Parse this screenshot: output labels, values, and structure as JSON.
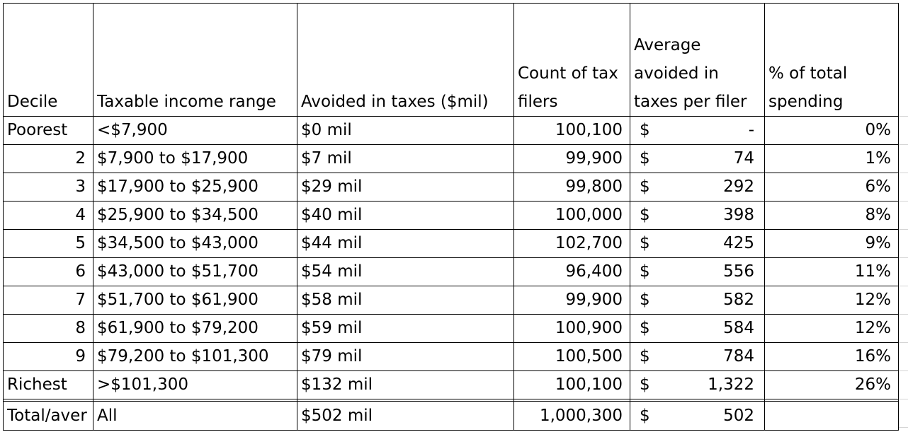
{
  "chart_data": {
    "type": "table",
    "columns": [
      "Decile",
      "Taxable income range",
      "Avoided in taxes ($mil)",
      "Count of tax filers",
      "Average avoided in taxes per filer",
      "% of total spending"
    ],
    "header_lines": [
      [
        "Decile"
      ],
      [
        "Taxable income range"
      ],
      [
        "Avoided in taxes ($mil)"
      ],
      [
        "Count of tax",
        "filers"
      ],
      [
        "Average",
        "avoided in",
        "taxes per filer"
      ],
      [
        "% of total",
        "spending"
      ]
    ],
    "rows": [
      {
        "decile": "Poorest",
        "range": "<$7,900",
        "avoided": "$0 mil",
        "count": "100,100",
        "cur": "$",
        "avg": "-",
        "pct": "0%"
      },
      {
        "decile": "2",
        "range": "$7,900 to $17,900",
        "avoided": "$7 mil",
        "count": "99,900",
        "cur": "$",
        "avg": "74",
        "pct": "1%"
      },
      {
        "decile": "3",
        "range": "$17,900 to $25,900",
        "avoided": "$29 mil",
        "count": "99,800",
        "cur": "$",
        "avg": "292",
        "pct": "6%"
      },
      {
        "decile": "4",
        "range": "$25,900 to $34,500",
        "avoided": "$40 mil",
        "count": "100,000",
        "cur": "$",
        "avg": "398",
        "pct": "8%"
      },
      {
        "decile": "5",
        "range": "$34,500 to $43,000",
        "avoided": "$44 mil",
        "count": "102,700",
        "cur": "$",
        "avg": "425",
        "pct": "9%"
      },
      {
        "decile": "6",
        "range": "$43,000 to $51,700",
        "avoided": "$54 mil",
        "count": "96,400",
        "cur": "$",
        "avg": "556",
        "pct": "11%"
      },
      {
        "decile": "7",
        "range": "$51,700 to $61,900",
        "avoided": "$58 mil",
        "count": "99,900",
        "cur": "$",
        "avg": "582",
        "pct": "12%"
      },
      {
        "decile": "8",
        "range": "$61,900 to $79,200",
        "avoided": "$59 mil",
        "count": "100,900",
        "cur": "$",
        "avg": "584",
        "pct": "12%"
      },
      {
        "decile": "9",
        "range": "$79,200 to $101,300",
        "avoided": "$79 mil",
        "count": "100,500",
        "cur": "$",
        "avg": "784",
        "pct": "16%"
      },
      {
        "decile": "Richest",
        "range": ">$101,300",
        "avoided": "$132 mil",
        "count": "100,100",
        "cur": "$",
        "avg": "1,322",
        "pct": "26%"
      }
    ],
    "total": {
      "decile": "Total/aver",
      "range": "All",
      "avoided": "$502 mil",
      "count": "1,000,300",
      "cur": "$",
      "avg": "502",
      "pct": ""
    },
    "colors": {
      "text": "#000000",
      "grid": "#000000",
      "sheet_grid": "#d4d4d4",
      "background": "#ffffff"
    }
  }
}
